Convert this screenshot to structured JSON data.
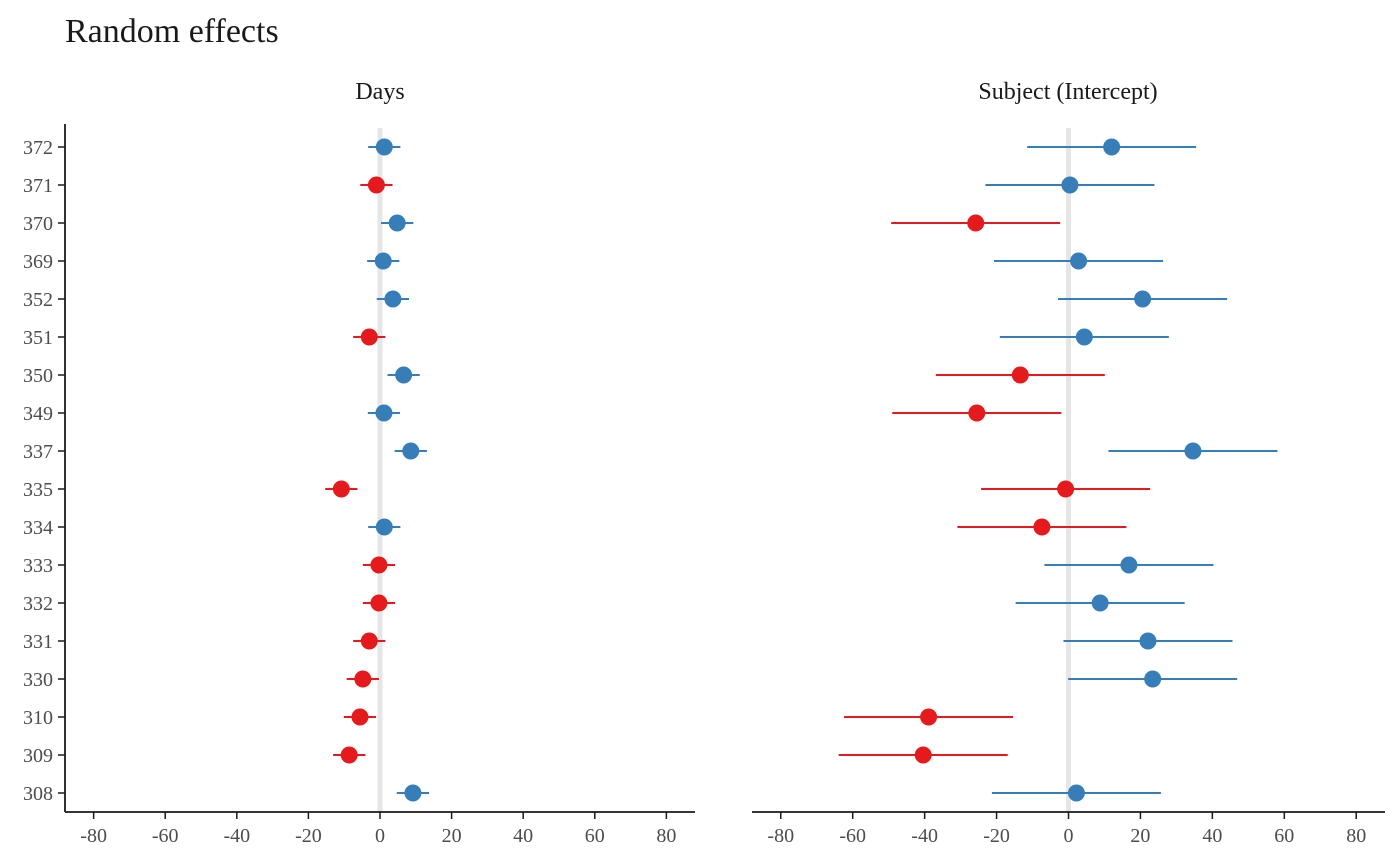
{
  "chart_data": {
    "type": "forest",
    "title": "Random effects",
    "panels": [
      {
        "title": "Days",
        "xlim": [
          -88,
          88
        ],
        "xticks": [
          -80,
          -60,
          -40,
          -20,
          0,
          20,
          40,
          60,
          80
        ],
        "reference_line": 0,
        "points": [
          {
            "label": "372",
            "estimate": 1.2,
            "low": -3.3,
            "high": 5.7
          },
          {
            "label": "371",
            "estimate": -1.0,
            "low": -5.5,
            "high": 3.5
          },
          {
            "label": "370",
            "estimate": 4.8,
            "low": 0.3,
            "high": 9.3
          },
          {
            "label": "369",
            "estimate": 0.9,
            "low": -3.6,
            "high": 5.4
          },
          {
            "label": "352",
            "estimate": 3.6,
            "low": -0.9,
            "high": 8.1
          },
          {
            "label": "351",
            "estimate": -3.0,
            "low": -7.5,
            "high": 1.5
          },
          {
            "label": "350",
            "estimate": 6.6,
            "low": 2.1,
            "high": 11.1
          },
          {
            "label": "349",
            "estimate": 1.1,
            "low": -3.4,
            "high": 5.6
          },
          {
            "label": "337",
            "estimate": 8.6,
            "low": 4.1,
            "high": 13.1
          },
          {
            "label": "335",
            "estimate": -10.8,
            "low": -15.3,
            "high": -6.3
          },
          {
            "label": "334",
            "estimate": 1.2,
            "low": -3.3,
            "high": 5.7
          },
          {
            "label": "333",
            "estimate": -0.3,
            "low": -4.8,
            "high": 4.2
          },
          {
            "label": "332",
            "estimate": -0.3,
            "low": -4.8,
            "high": 4.2
          },
          {
            "label": "331",
            "estimate": -3.0,
            "low": -7.5,
            "high": 1.5
          },
          {
            "label": "330",
            "estimate": -4.8,
            "low": -9.3,
            "high": -0.3
          },
          {
            "label": "310",
            "estimate": -5.6,
            "low": -10.1,
            "high": -1.1
          },
          {
            "label": "309",
            "estimate": -8.6,
            "low": -13.1,
            "high": -4.1
          },
          {
            "label": "308",
            "estimate": 9.2,
            "low": 4.7,
            "high": 13.7
          }
        ]
      },
      {
        "title": "Subject (Intercept)",
        "xlim": [
          -88,
          88
        ],
        "xticks": [
          -80,
          -60,
          -40,
          -20,
          0,
          20,
          40,
          60,
          80
        ],
        "reference_line": 0,
        "points": [
          {
            "label": "372",
            "estimate": 12.0,
            "low": -11.5,
            "high": 35.5
          },
          {
            "label": "371",
            "estimate": 0.4,
            "low": -23.1,
            "high": 23.9
          },
          {
            "label": "370",
            "estimate": -25.8,
            "low": -49.3,
            "high": -2.3
          },
          {
            "label": "369",
            "estimate": 2.8,
            "low": -20.7,
            "high": 26.3
          },
          {
            "label": "352",
            "estimate": 20.6,
            "low": -2.9,
            "high": 44.1
          },
          {
            "label": "351",
            "estimate": 4.4,
            "low": -19.1,
            "high": 27.9
          },
          {
            "label": "350",
            "estimate": -13.4,
            "low": -36.9,
            "high": 10.1
          },
          {
            "label": "349",
            "estimate": -25.5,
            "low": -49.0,
            "high": -2.0
          },
          {
            "label": "337",
            "estimate": 34.6,
            "low": 11.1,
            "high": 58.1
          },
          {
            "label": "335",
            "estimate": -0.8,
            "low": -24.3,
            "high": 22.7
          },
          {
            "label": "334",
            "estimate": -7.4,
            "low": -30.9,
            "high": 16.1
          },
          {
            "label": "333",
            "estimate": 16.8,
            "low": -6.7,
            "high": 40.3
          },
          {
            "label": "332",
            "estimate": 8.8,
            "low": -14.7,
            "high": 32.3
          },
          {
            "label": "331",
            "estimate": 22.1,
            "low": -1.4,
            "high": 45.6
          },
          {
            "label": "330",
            "estimate": 23.4,
            "low": -0.1,
            "high": 46.9
          },
          {
            "label": "310",
            "estimate": -38.9,
            "low": -62.4,
            "high": -15.4
          },
          {
            "label": "309",
            "estimate": -40.4,
            "low": -63.9,
            "high": -16.9
          },
          {
            "label": "308",
            "estimate": 2.2,
            "low": -21.3,
            "high": 25.7
          }
        ]
      }
    ],
    "colors": {
      "positive": "#377eb8",
      "negative": "#e41a1c",
      "reference": "#e6e6e6",
      "axis": "#1a1a1a"
    },
    "grid": false,
    "legend": "none"
  }
}
